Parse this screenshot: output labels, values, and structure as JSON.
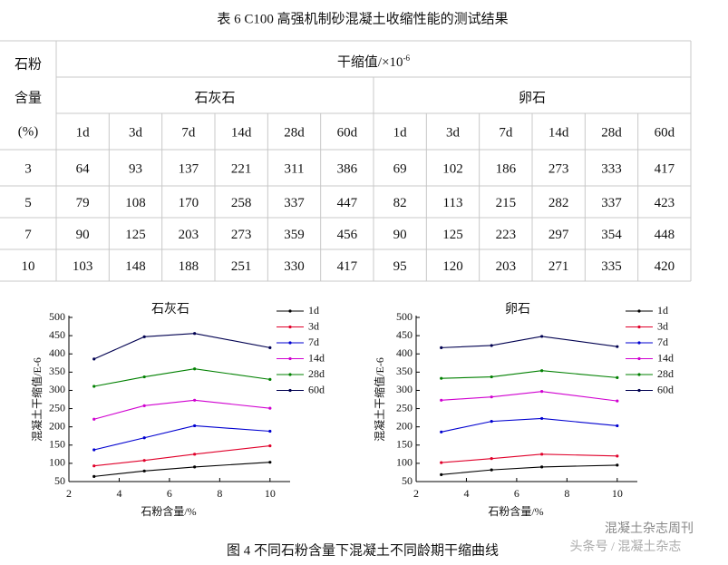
{
  "table": {
    "title": "表 6 C100 高强机制砂混凝土收缩性能的测试结果",
    "row_header": [
      "石粉",
      "含量",
      "(%)"
    ],
    "shrinkage_header": "干缩值/×10",
    "shrinkage_exp": "-6",
    "groups": [
      "石灰石",
      "卵石"
    ],
    "ages": [
      "1d",
      "3d",
      "7d",
      "14d",
      "28d",
      "60d",
      "1d",
      "3d",
      "7d",
      "14d",
      "28d",
      "60d"
    ],
    "rows": [
      [
        "3",
        "64",
        "93",
        "137",
        "221",
        "311",
        "386",
        "69",
        "102",
        "186",
        "273",
        "333",
        "417"
      ],
      [
        "5",
        "79",
        "108",
        "170",
        "258",
        "337",
        "447",
        "82",
        "113",
        "215",
        "282",
        "337",
        "423"
      ],
      [
        "7",
        "90",
        "125",
        "203",
        "273",
        "359",
        "456",
        "90",
        "125",
        "223",
        "297",
        "354",
        "448"
      ],
      [
        "10",
        "103",
        "148",
        "188",
        "251",
        "330",
        "417",
        "95",
        "120",
        "203",
        "271",
        "335",
        "420"
      ]
    ]
  },
  "chart_data": [
    {
      "type": "line",
      "title": "石灰石",
      "x_label": "石粉含量/%",
      "y_label": "混凝土干缩值/E-6",
      "x": [
        3,
        5,
        7,
        10
      ],
      "xlim": [
        2,
        10.8
      ],
      "xticks": [
        2,
        4,
        6,
        8,
        10
      ],
      "ylim": [
        50,
        500
      ],
      "yticks": [
        50,
        100,
        150,
        200,
        250,
        300,
        350,
        400,
        450,
        500
      ],
      "legend": "upper right",
      "series": [
        {
          "name": "1d",
          "color": "#000000",
          "values": [
            64,
            79,
            90,
            103
          ]
        },
        {
          "name": "3d",
          "color": "#e0002a",
          "values": [
            93,
            108,
            125,
            148
          ]
        },
        {
          "name": "7d",
          "color": "#0000d0",
          "values": [
            137,
            170,
            203,
            188
          ]
        },
        {
          "name": "14d",
          "color": "#d000d0",
          "values": [
            221,
            258,
            273,
            251
          ]
        },
        {
          "name": "28d",
          "color": "#008000",
          "values": [
            311,
            337,
            359,
            330
          ]
        },
        {
          "name": "60d",
          "color": "#000050",
          "values": [
            386,
            447,
            456,
            417
          ]
        }
      ]
    },
    {
      "type": "line",
      "title": "卵石",
      "x_label": "石粉含量/%",
      "y_label": "混凝土干缩值/E-6",
      "x": [
        3,
        5,
        7,
        10
      ],
      "xlim": [
        2,
        10.8
      ],
      "xticks": [
        2,
        4,
        6,
        8,
        10
      ],
      "ylim": [
        50,
        500
      ],
      "yticks": [
        50,
        100,
        150,
        200,
        250,
        300,
        350,
        400,
        450,
        500
      ],
      "legend": "upper right",
      "series": [
        {
          "name": "1d",
          "color": "#000000",
          "values": [
            69,
            82,
            90,
            95
          ]
        },
        {
          "name": "3d",
          "color": "#e0002a",
          "values": [
            102,
            113,
            125,
            120
          ]
        },
        {
          "name": "7d",
          "color": "#0000d0",
          "values": [
            186,
            215,
            223,
            203
          ]
        },
        {
          "name": "14d",
          "color": "#d000d0",
          "values": [
            273,
            282,
            297,
            271
          ]
        },
        {
          "name": "28d",
          "color": "#008000",
          "values": [
            333,
            337,
            354,
            335
          ]
        },
        {
          "name": "60d",
          "color": "#000050",
          "values": [
            417,
            423,
            448,
            420
          ]
        }
      ]
    }
  ],
  "caption": "图 4 不同石粉含量下混凝土不同龄期干缩曲线",
  "watermark": [
    "混凝土杂志周刊",
    "头条号 / 混凝土杂志"
  ]
}
